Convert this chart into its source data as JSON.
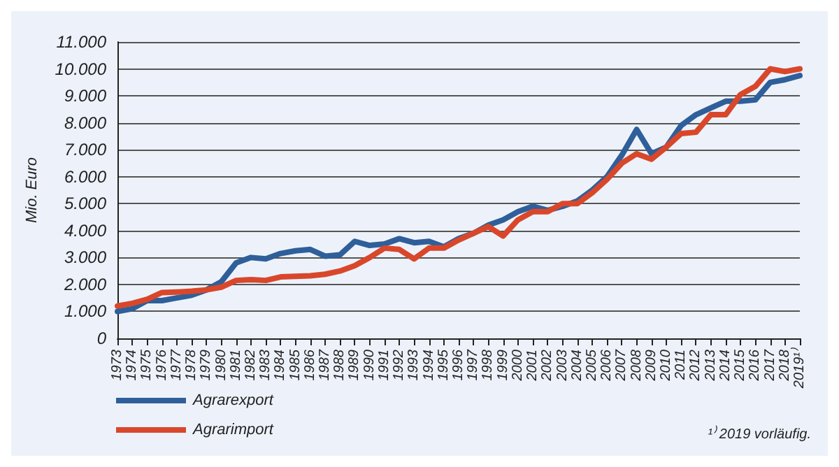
{
  "chart_data": {
    "type": "line",
    "ylabel": "Mio. Euro",
    "categories": [
      "1973",
      "1974",
      "1975",
      "1976",
      "1977",
      "1978",
      "1979",
      "1980",
      "1981",
      "1982",
      "1983",
      "1984",
      "1985",
      "1986",
      "1987",
      "1988",
      "1989",
      "1990",
      "1991",
      "1992",
      "1993",
      "1994",
      "1995",
      "1996",
      "1997",
      "1998",
      "1999",
      "2000",
      "2001",
      "2002",
      "2003",
      "2004",
      "2005",
      "2006",
      "2007",
      "2008",
      "2009",
      "2010",
      "2011",
      "2012",
      "2013",
      "2014",
      "2015",
      "2016",
      "2017",
      "2018",
      "2019¹⁾"
    ],
    "series": [
      {
        "name": "Agrarexport",
        "color": "#2f5f9a",
        "values": [
          1000,
          1100,
          1400,
          1400,
          1500,
          1600,
          1800,
          2100,
          2800,
          3000,
          2950,
          3150,
          3250,
          3300,
          3050,
          3100,
          3600,
          3450,
          3500,
          3700,
          3550,
          3600,
          3400,
          3700,
          3900,
          4200,
          4400,
          4700,
          4900,
          4750,
          4900,
          5100,
          5500,
          6000,
          6800,
          7750,
          6850,
          7100,
          7900,
          8300,
          8550,
          8800,
          8800,
          8850,
          9500,
          9600,
          9750
        ]
      },
      {
        "name": "Agrarimport",
        "color": "#d9472b",
        "values": [
          1200,
          1300,
          1450,
          1700,
          1720,
          1750,
          1800,
          1900,
          2150,
          2180,
          2150,
          2280,
          2300,
          2320,
          2380,
          2500,
          2700,
          3000,
          3350,
          3300,
          2950,
          3350,
          3350,
          3650,
          3900,
          4150,
          3800,
          4400,
          4700,
          4700,
          5000,
          5000,
          5400,
          5900,
          6500,
          6850,
          6650,
          7100,
          7600,
          7650,
          8300,
          8300,
          9050,
          9350,
          10000,
          9900,
          10000
        ]
      }
    ],
    "ylim": [
      0,
      11000
    ],
    "yticks": [
      0,
      {
        "value": 1000,
        "label": "1.000"
      },
      {
        "value": 2000,
        "label": "2.000"
      },
      {
        "value": 3000,
        "label": "3.000"
      },
      {
        "value": 4000,
        "label": "4.000"
      },
      {
        "value": 5000,
        "label": "5.000"
      },
      {
        "value": 6000,
        "label": "6.000"
      },
      {
        "value": 7000,
        "label": "7.000"
      },
      {
        "value": 8000,
        "label": "8.000"
      },
      {
        "value": 9000,
        "label": "9.000"
      },
      {
        "value": 10000,
        "label": "10.000"
      },
      {
        "value": 11000,
        "label": "11.000"
      }
    ],
    "grid": "y",
    "legend": "bottom left",
    "marker": "none",
    "line_style": "solid",
    "annotations": [
      "¹⁾ 2019 vorläufig."
    ]
  }
}
